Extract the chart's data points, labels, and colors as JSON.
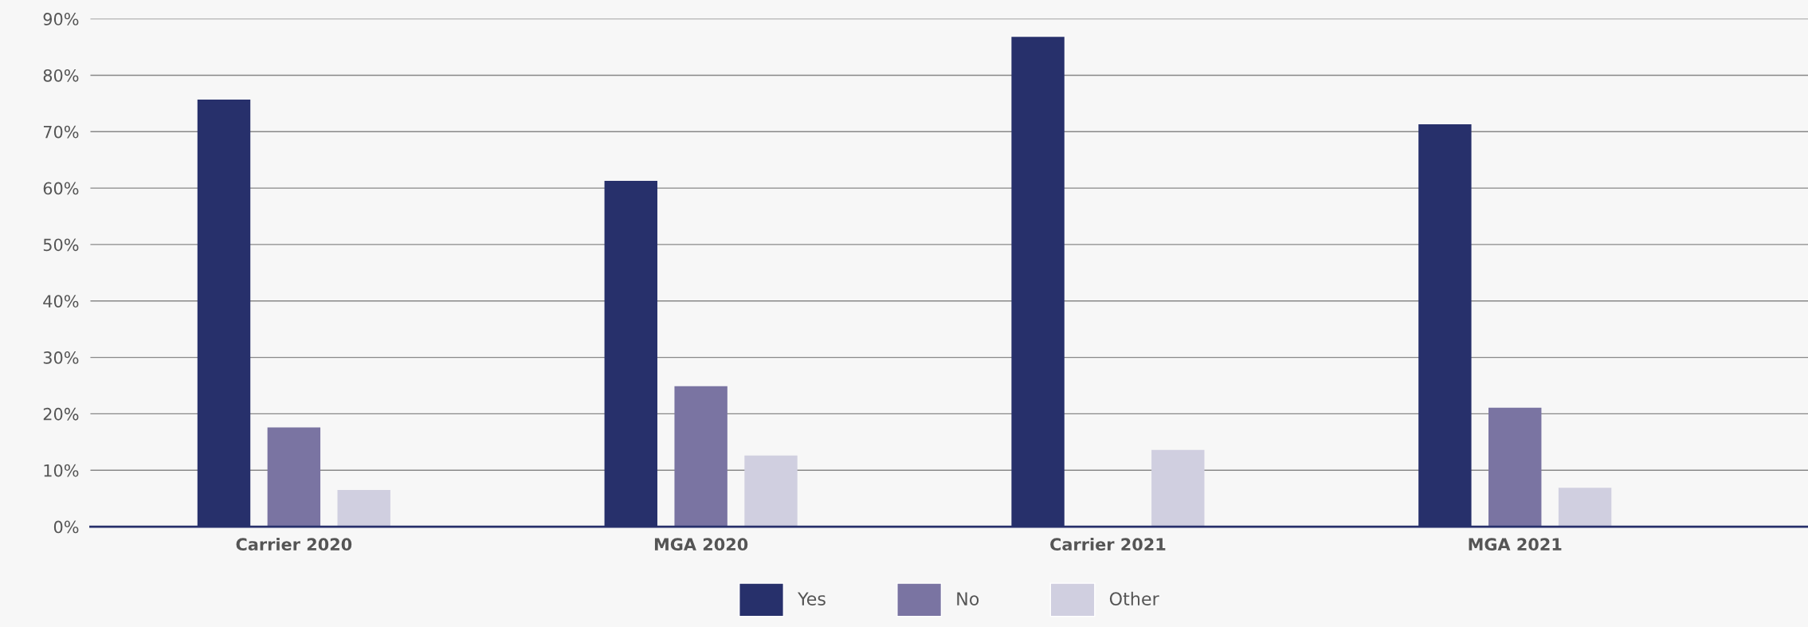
{
  "chart_data": {
    "type": "bar",
    "categories": [
      "Carrier 2020",
      "MGA 2020",
      "Carrier 2021",
      "MGA 2021"
    ],
    "series": [
      {
        "name": "Yes",
        "color": "#27306b",
        "values": [
          75.7,
          61.3,
          86.8,
          71.3
        ]
      },
      {
        "name": "No",
        "color": "#7a74a2",
        "values": [
          17.6,
          24.9,
          0,
          21.1
        ]
      },
      {
        "name": "Other",
        "color": "#d0cfe0",
        "values": [
          6.5,
          12.6,
          13.6,
          6.9
        ]
      }
    ],
    "ylim": [
      0,
      90
    ],
    "yticks": [
      {
        "value": 0,
        "label": "0%"
      },
      {
        "value": 10,
        "label": "10%"
      },
      {
        "value": 20,
        "label": "20%"
      },
      {
        "value": 30,
        "label": "30%"
      },
      {
        "value": 40,
        "label": "40%"
      },
      {
        "value": 50,
        "label": "50%"
      },
      {
        "value": 60,
        "label": "60%"
      },
      {
        "value": 70,
        "label": "70%"
      },
      {
        "value": 80,
        "label": "80%"
      },
      {
        "value": 90,
        "label": "90%"
      }
    ],
    "grid": "y",
    "legend": "bottom"
  }
}
